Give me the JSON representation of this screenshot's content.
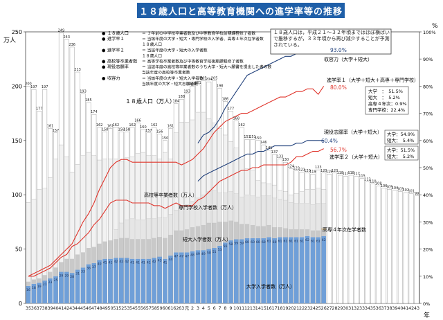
{
  "title": "１８歳人口と高等教育機関への進学率等の推移",
  "left_axis_unit": "万人",
  "right_axis_unit": "%",
  "x_axis_unit": "年",
  "legend": [
    {
      "label": "１８歳人口",
      "desc": "＝ ３年前の中学校卒業者数及び中等教育学校前期課程修了者数"
    },
    {
      "label": "進学率１",
      "desc": "＝ 当該年度の大学・短大・専門学校の入学者、高専４年次在学者数"
    },
    {
      "label": "",
      "desc": "１８歳人口"
    },
    {
      "label": "進学率２",
      "desc": "＝ 当該年度の大学・短大の入学者数"
    },
    {
      "label": "",
      "desc": "１８歳人口"
    },
    {
      "label": "高校等卒業者数",
      "desc": "＝ 高等学校卒業者数及び中等教育学校後期課程修了者数"
    },
    {
      "label": "現役志願率",
      "desc": "＝ 当該年度の高校等卒業者数のうち大学・短大へ願書を提出した者の数"
    },
    {
      "label": "",
      "desc": "当該年度の高校等卒業者数"
    },
    {
      "label": "収容力",
      "desc": "＝ 当該年度の大学・短大入学者数"
    },
    {
      "label": "",
      "desc": "当該年度の大学・短大志願者数"
    }
  ],
  "note": "１８歳人口は，平成２１〜３２年頃まではほぼ横ばいで推移するが，３３年頃から再び減少することが予測されている。",
  "series_labels": {
    "pop18": "１８歳人口（万人）",
    "hs_grad": "高校等卒業者数（万人）",
    "vocational": "専門学校入学者数（万人）",
    "junior": "短大入学者数（万人）",
    "university": "大学入学者数（万人）",
    "kosen": "高専４年次在学者数",
    "capacity": "収容力（大学＋短大）",
    "rate1": "進学率１（大学＋短大＋高専＋専門学校）",
    "ganshi": "現役志願率（大学＋短大）",
    "rate2": "進学率２（大学＋短大）"
  },
  "line_end_labels": {
    "capacity": "93.0%",
    "rate1": "80.0%",
    "ganshi": "60.4%",
    "rate2": "56.7%"
  },
  "breakdown_rate1": [
    "大学　：　51.5%",
    "短大　：　5.2%",
    "高専４年次：0.9%",
    "専門学校：22.4%"
  ],
  "breakdown_rate2": [
    "大学：54.9%",
    "短大：　5.4%"
  ],
  "breakdown_ganshi": [
    "大学：51.5%",
    "短大：　5.2%"
  ],
  "chart_data": {
    "type": "bar",
    "years": [
      "35",
      "36",
      "37",
      "38",
      "39",
      "40",
      "41",
      "42",
      "43",
      "44",
      "45",
      "46",
      "47",
      "48",
      "49",
      "50",
      "51",
      "52",
      "53",
      "54",
      "55",
      "56",
      "57",
      "58",
      "59",
      "60",
      "61",
      "62",
      "63",
      "元",
      "2",
      "3",
      "4",
      "5",
      "6",
      "7",
      "8",
      "9",
      "10",
      "11",
      "12",
      "13",
      "14",
      "15",
      "16",
      "17",
      "18",
      "19",
      "20",
      "21",
      "22",
      "23",
      "24",
      "25",
      "26",
      "27",
      "28",
      "29",
      "30",
      "31",
      "32",
      "33",
      "34",
      "35",
      "36",
      "37",
      "38",
      "39",
      "40",
      "41",
      "42",
      "43"
    ],
    "pop18": [
      200,
      197,
      177,
      197,
      161,
      157,
      249,
      243,
      236,
      213,
      193,
      185,
      174,
      162,
      158,
      161,
      162,
      158,
      158,
      162,
      166,
      160,
      157,
      162,
      156,
      150,
      161,
      184,
      188,
      193,
      200,
      201,
      205,
      204,
      205,
      198,
      186,
      177,
      168,
      162,
      151,
      151,
      150,
      146,
      141,
      137,
      133,
      130,
      124,
      122,
      121,
      120,
      119,
      123,
      120,
      119,
      120,
      118,
      117,
      118,
      117,
      115,
      112,
      110,
      108,
      106,
      105,
      104,
      103,
      102,
      101,
      99
    ],
    "hs_grad": [
      93,
      96,
      105,
      106,
      116,
      133,
      146,
      135,
      121,
      128,
      136,
      139,
      136,
      132,
      133,
      133,
      133,
      131,
      134,
      135,
      138,
      139,
      136,
      136,
      133,
      139,
      133,
      157,
      167,
      167,
      169,
      176,
      176,
      170,
      166,
      161,
      155,
      149,
      143,
      133,
      124,
      123,
      113,
      111,
      110,
      109,
      104,
      103,
      100,
      101,
      103,
      105,
      105,
      106,
      105
    ],
    "vocational": [
      null,
      null,
      null,
      null,
      null,
      null,
      null,
      null,
      null,
      null,
      null,
      null,
      null,
      null,
      null,
      null,
      9,
      14,
      17,
      19,
      18,
      18,
      19,
      18,
      18,
      19,
      19,
      19,
      22,
      23,
      24,
      26,
      28,
      29,
      30,
      27,
      27,
      27,
      26,
      25,
      27,
      27,
      27,
      28,
      27,
      27,
      26,
      26,
      25,
      24,
      24,
      24,
      24,
      25,
      23
    ],
    "junior": [
      4,
      4,
      4,
      5,
      6,
      8,
      9,
      12,
      13,
      14,
      14,
      15,
      15,
      15,
      16,
      17,
      17,
      18,
      18,
      18,
      18,
      18,
      18,
      18,
      18,
      19,
      19,
      20,
      20,
      21,
      22,
      22,
      23,
      24,
      23,
      22,
      19,
      18,
      16,
      14,
      13,
      12,
      11,
      11,
      11,
      10,
      9,
      8,
      7,
      7,
      7,
      6,
      6,
      6,
      6
    ],
    "university": [
      16,
      18,
      19,
      21,
      23,
      25,
      29,
      29,
      28,
      31,
      33,
      36,
      37,
      40,
      41,
      41,
      42,
      42,
      42,
      41,
      41,
      41,
      41,
      42,
      43,
      41,
      44,
      47,
      47,
      47,
      48,
      49,
      49,
      50,
      51,
      53,
      56,
      58,
      59,
      59,
      60,
      60,
      60,
      60,
      61,
      60,
      61,
      61,
      61,
      61,
      61,
      62,
      61,
      61,
      62
    ],
    "kosen": [
      null,
      null,
      null,
      null,
      null,
      null,
      null,
      null,
      null,
      null,
      null,
      null,
      null,
      null,
      null,
      null,
      null,
      null,
      null,
      null,
      null,
      null,
      null,
      null,
      null,
      null,
      null,
      null,
      null,
      null,
      null,
      null,
      null,
      null,
      null,
      null,
      null,
      null,
      null,
      null,
      null,
      null,
      null,
      null,
      null,
      null,
      null,
      null,
      null,
      null,
      null,
      null,
      null,
      null,
      1
    ],
    "capacity": [
      null,
      null,
      null,
      null,
      null,
      null,
      null,
      null,
      null,
      null,
      null,
      null,
      null,
      null,
      null,
      null,
      null,
      null,
      null,
      null,
      null,
      null,
      null,
      null,
      null,
      null,
      null,
      null,
      null,
      null,
      null,
      59,
      62,
      63,
      65,
      68,
      72,
      75,
      78,
      81,
      84,
      85,
      86,
      87,
      88,
      89,
      90,
      91,
      91,
      92,
      92,
      93,
      93,
      93,
      93
    ],
    "rate1": [
      10,
      11,
      12,
      13,
      14,
      16,
      18,
      20,
      22,
      26,
      30,
      33,
      37,
      42,
      46,
      50,
      52,
      53,
      53,
      52,
      52,
      52,
      52,
      52,
      52,
      52,
      52,
      52,
      51,
      52,
      53,
      55,
      57,
      60,
      63,
      65,
      67,
      68,
      69,
      70,
      70,
      71,
      72,
      73,
      74,
      75,
      76,
      76,
      77,
      78,
      78,
      79,
      79,
      77,
      80
    ],
    "ganshi": [
      null,
      null,
      null,
      null,
      null,
      null,
      null,
      null,
      null,
      null,
      null,
      null,
      null,
      null,
      null,
      null,
      null,
      null,
      null,
      null,
      null,
      null,
      null,
      null,
      null,
      null,
      null,
      null,
      null,
      null,
      null,
      45,
      47,
      48,
      49,
      50,
      51,
      52,
      53,
      54,
      55,
      55,
      56,
      56,
      57,
      58,
      58,
      58,
      58,
      59,
      59,
      60,
      60,
      60,
      60
    ],
    "rate2": [
      10,
      10,
      11,
      12,
      13,
      15,
      17,
      18,
      21,
      22,
      24,
      26,
      29,
      31,
      34,
      37,
      38,
      38,
      38,
      37,
      37,
      37,
      37,
      36,
      36,
      35,
      36,
      37,
      36,
      36,
      36,
      38,
      39,
      41,
      43,
      45,
      46,
      47,
      48,
      49,
      49,
      50,
      50,
      51,
      51,
      51,
      51,
      51,
      52,
      54,
      54,
      55,
      56,
      56,
      57
    ],
    "left_axis": {
      "min": 0,
      "max": 250,
      "ticks": [
        0,
        50,
        100,
        150,
        200,
        250
      ]
    },
    "right_axis": {
      "min": 0,
      "max": 100,
      "ticks": [
        0,
        10,
        20,
        30,
        40,
        50,
        60,
        70,
        80,
        90,
        100
      ]
    },
    "colors": {
      "university": "#6f9fd8",
      "junior": "#c9c9c9",
      "vocational": "#e6e6e6",
      "hs_grad": "#f2f2f2",
      "pop18_bar": "#ffffff",
      "kosen": "#c6a56b",
      "capacity": "#1f3f7a",
      "rate1": "#e0342b",
      "ganshi": "#1f3f7a",
      "rate2": "#e0342b",
      "title_bg": "#1f5fa8"
    }
  }
}
